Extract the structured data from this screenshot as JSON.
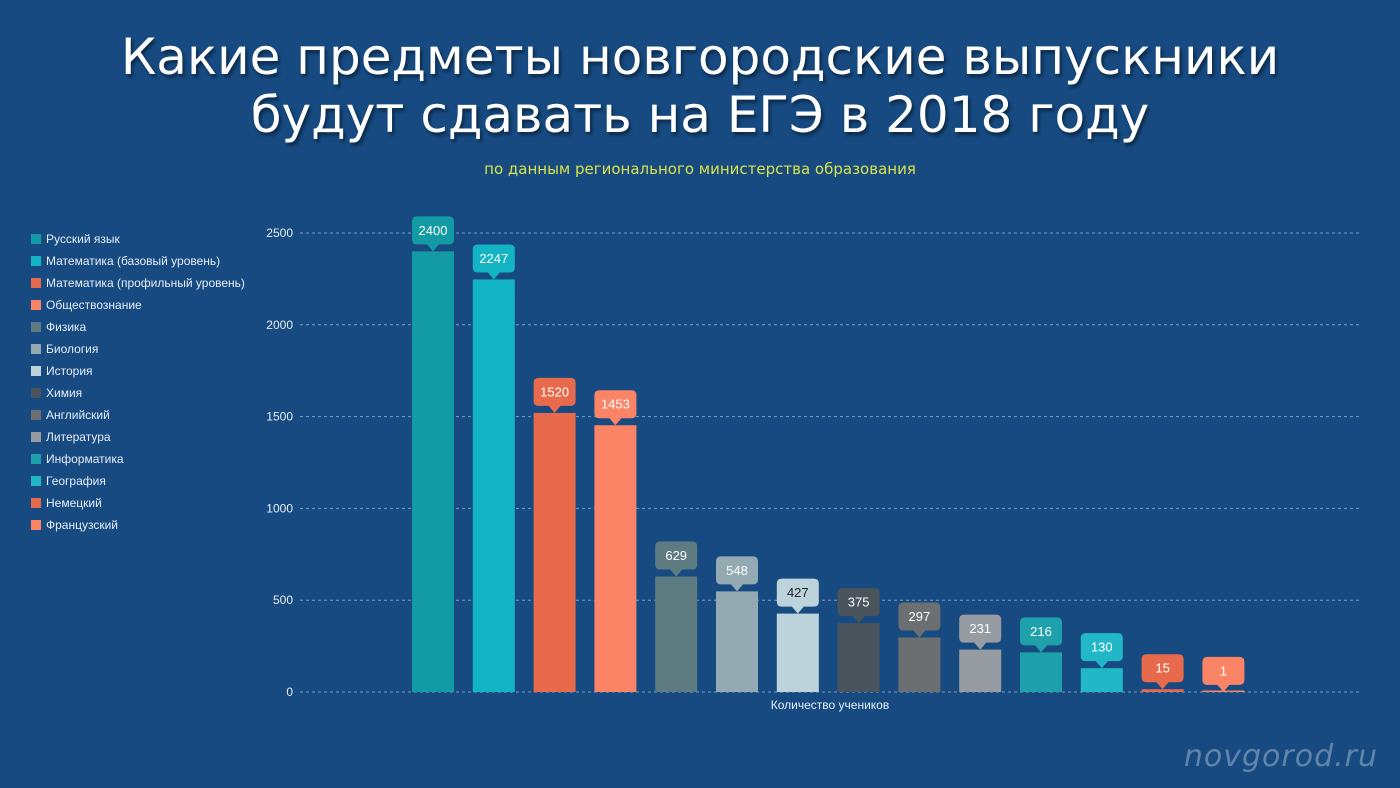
{
  "header": {
    "title_line1": "Какие предметы новгородские выпускники",
    "title_line2": "будут сдавать на ЕГЭ в 2018 году",
    "subtitle": "по данным регионального министерства образования"
  },
  "watermark": "novgorod.ru",
  "chart_data": {
    "type": "bar",
    "title": "Какие предметы новгородские выпускники будут сдавать на ЕГЭ в 2018 году",
    "subtitle": "по данным регионального министерства образования",
    "xlabel": "Количество учеников",
    "ylabel": "",
    "ylim": [
      0,
      2500
    ],
    "yticks": [
      0,
      500,
      1000,
      1500,
      2000,
      2500
    ],
    "grid": true,
    "legend_position": "left",
    "categories": [
      "Русский язык",
      "Математика (базовый уровень)",
      "Математика (профильный уровень)",
      "Обществознание",
      "Физика",
      "Биология",
      "История",
      "Химия",
      "Английский",
      "Литература",
      "Информатика",
      "География",
      "Немецкий",
      "Французский"
    ],
    "values": [
      2400,
      2247,
      1520,
      1453,
      629,
      548,
      427,
      375,
      297,
      231,
      216,
      130,
      15,
      1
    ],
    "colors": [
      "#129ba5",
      "#13b4c4",
      "#e86a4c",
      "#fb8466",
      "#5e7b82",
      "#93aab3",
      "#bdd3db",
      "#4a545c",
      "#6b6f72",
      "#969ca1",
      "#1fa1ab",
      "#21b7c6",
      "#e86a4c",
      "#fb8466"
    ],
    "label_text_colors": [
      "#ffffff",
      "#ffffff",
      "#ffffff",
      "#ffffff",
      "#ffffff",
      "#ffffff",
      "#222222",
      "#ffffff",
      "#ffffff",
      "#ffffff",
      "#ffffff",
      "#ffffff",
      "#ffffff",
      "#ffffff"
    ]
  }
}
